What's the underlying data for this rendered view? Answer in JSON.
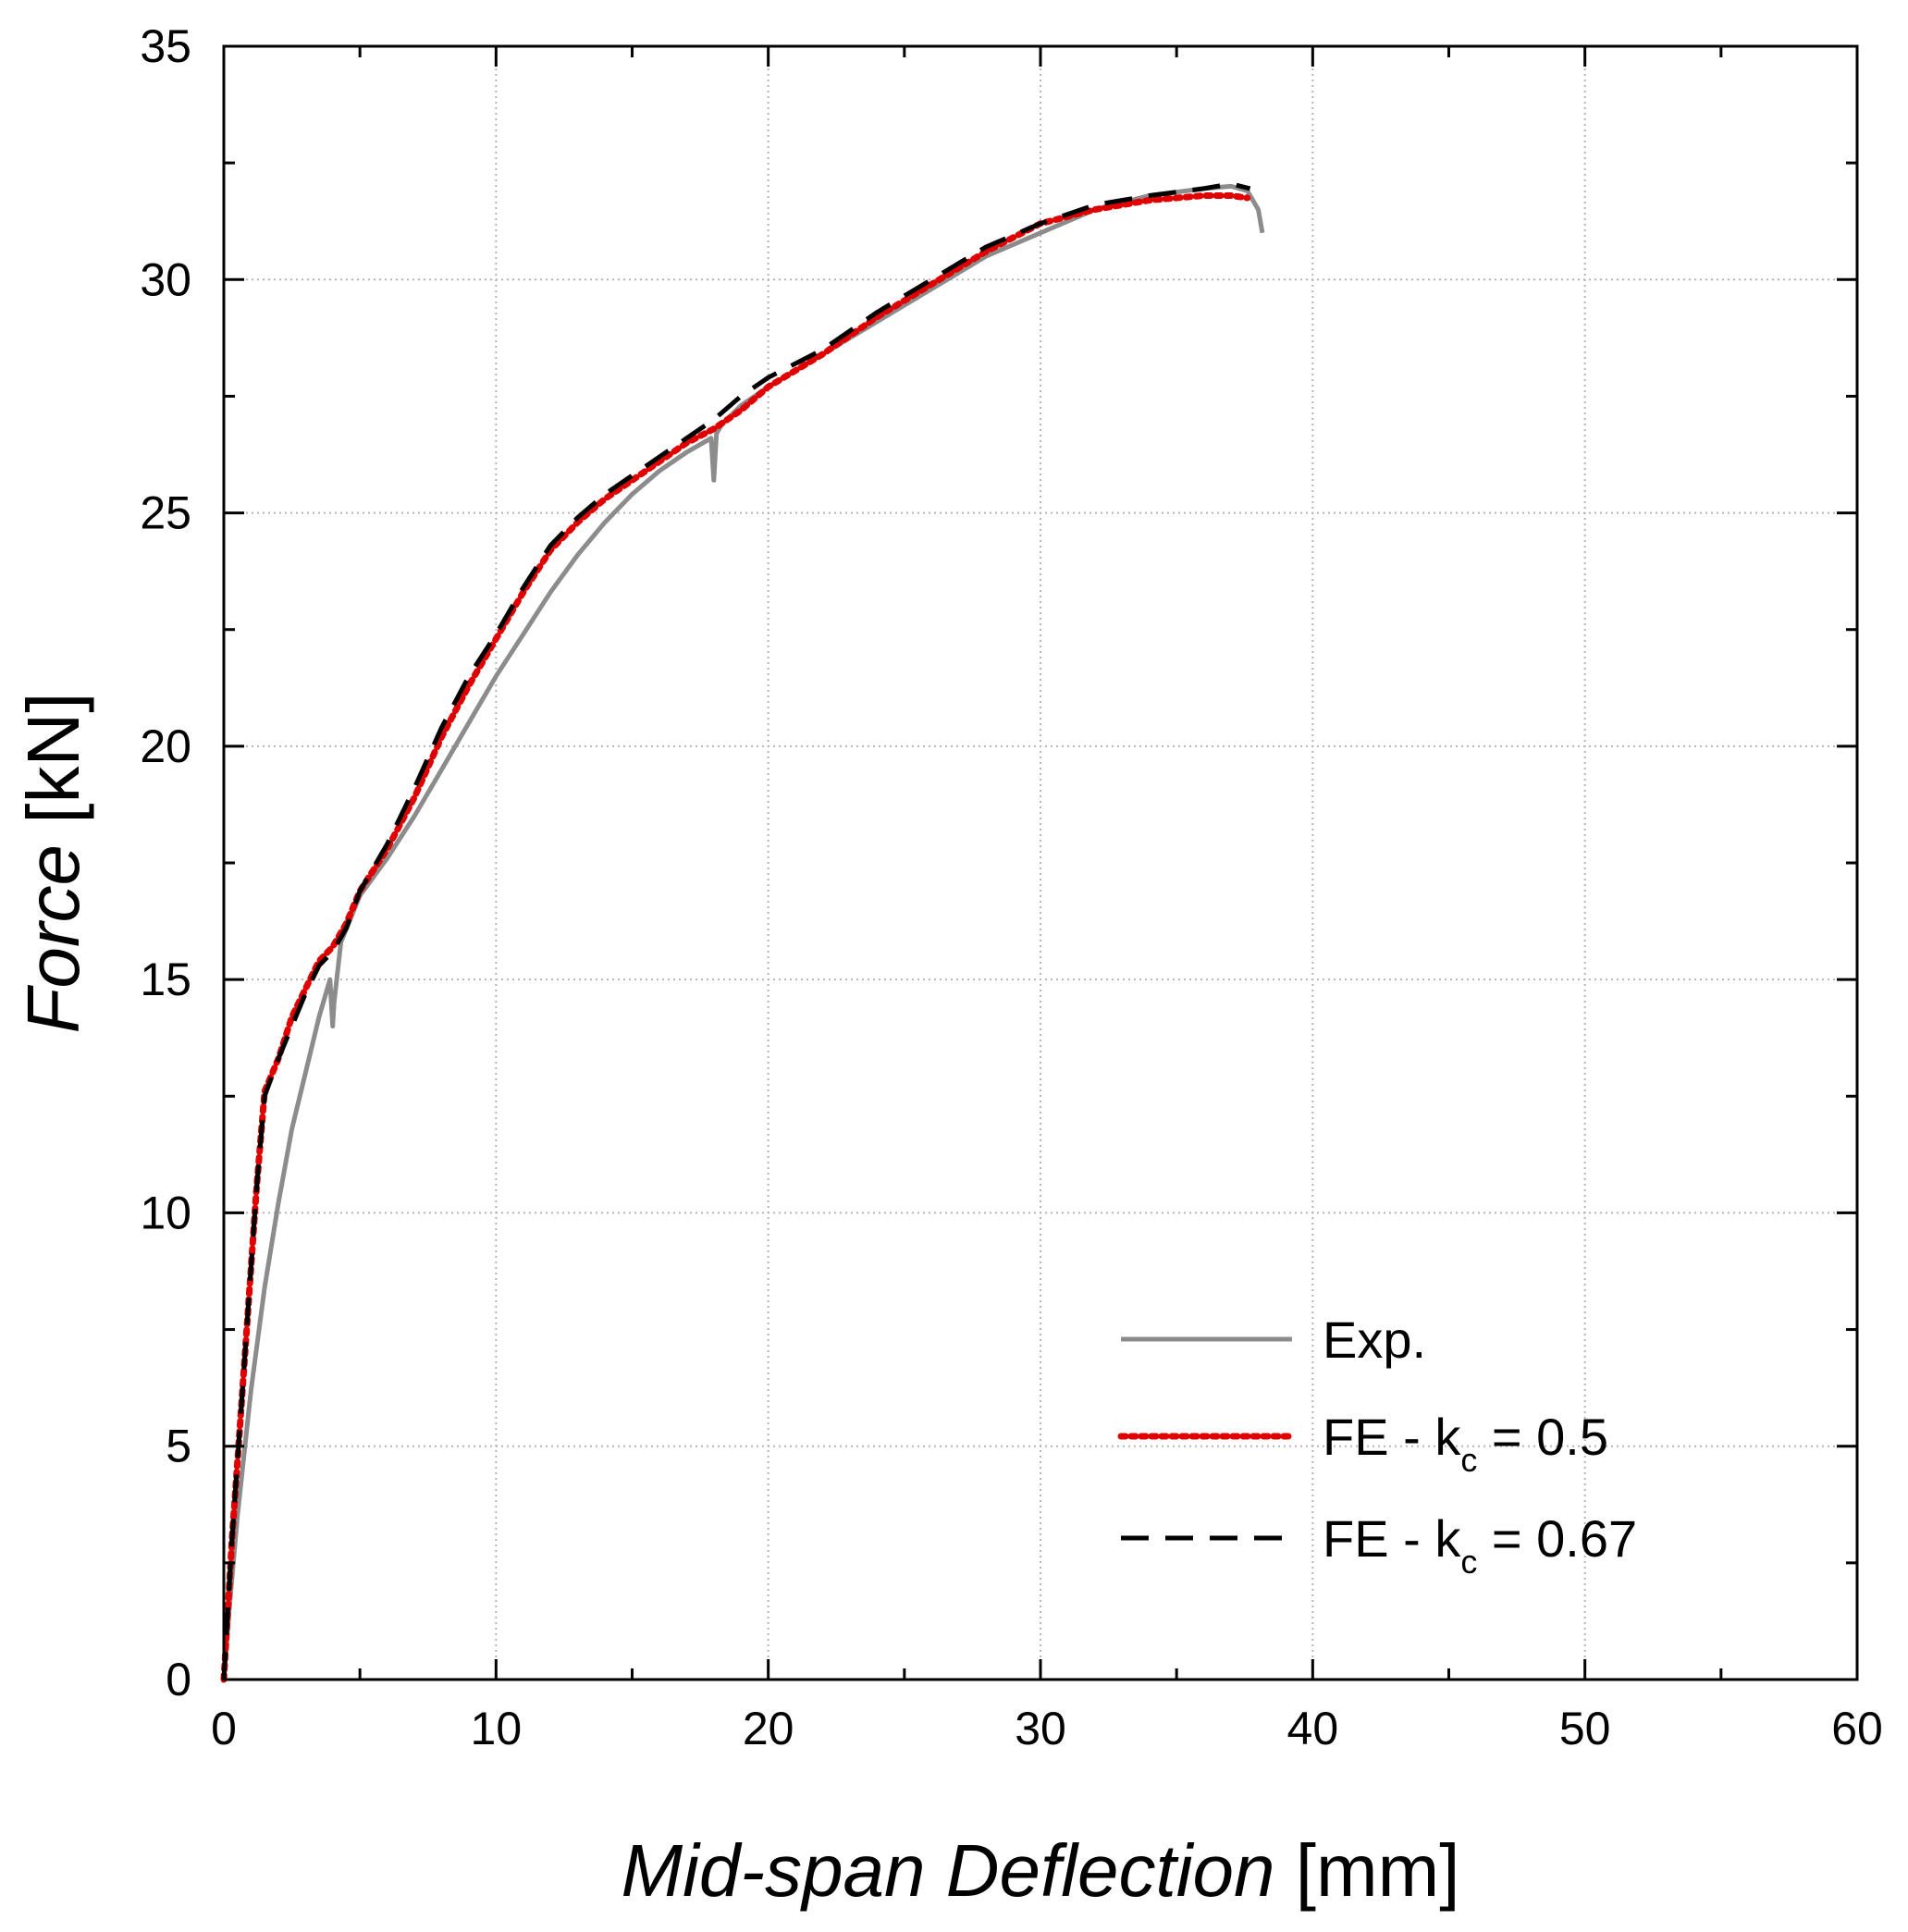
{
  "chart_data": {
    "type": "line",
    "title": "",
    "xlabel": {
      "italic": "Mid-span Deflection",
      "units": "[mm]"
    },
    "ylabel": {
      "italic": "Force",
      "units": "[kN]"
    },
    "xlim": [
      0,
      60
    ],
    "ylim": [
      0,
      35
    ],
    "xticks": [
      0,
      10,
      20,
      30,
      40,
      50,
      60
    ],
    "yticks": [
      0,
      5,
      10,
      15,
      20,
      25,
      30,
      35
    ],
    "x_tick_labels": [
      "0",
      "10",
      "20",
      "30",
      "40",
      "50",
      "60"
    ],
    "y_tick_labels": [
      "0",
      "5",
      "10",
      "15",
      "20",
      "25",
      "30",
      "35"
    ],
    "grid": true,
    "legend_position": "bottom-right",
    "series": [
      {
        "name": "Exp.",
        "legend": {
          "main": "Exp.",
          "sub": "",
          "suffix": ""
        },
        "color": "#8c8c8c",
        "style": "solid",
        "points": [
          [
            0,
            0
          ],
          [
            0.2,
            1.5
          ],
          [
            0.5,
            3.5
          ],
          [
            1,
            6.2
          ],
          [
            1.5,
            8.4
          ],
          [
            2,
            10.2
          ],
          [
            2.5,
            11.8
          ],
          [
            3,
            13
          ],
          [
            3.5,
            14.2
          ],
          [
            3.9,
            15
          ],
          [
            4,
            14
          ],
          [
            4.05,
            14.5
          ],
          [
            4.3,
            15.8
          ],
          [
            5,
            16.8
          ],
          [
            6,
            17.6
          ],
          [
            7,
            18.5
          ],
          [
            8,
            19.5
          ],
          [
            9,
            20.5
          ],
          [
            10,
            21.5
          ],
          [
            11,
            22.4
          ],
          [
            12,
            23.3
          ],
          [
            13,
            24.1
          ],
          [
            14,
            24.8
          ],
          [
            15,
            25.4
          ],
          [
            16,
            25.9
          ],
          [
            17,
            26.3
          ],
          [
            17.9,
            26.6
          ],
          [
            18,
            25.7
          ],
          [
            18.1,
            26.7
          ],
          [
            18.3,
            26.9
          ],
          [
            19,
            27.3
          ],
          [
            20,
            27.7
          ],
          [
            22,
            28.4
          ],
          [
            24,
            29.1
          ],
          [
            26,
            29.8
          ],
          [
            28,
            30.5
          ],
          [
            30,
            31
          ],
          [
            32,
            31.5
          ],
          [
            34,
            31.8
          ],
          [
            36,
            31.95
          ],
          [
            37,
            32
          ],
          [
            37.6,
            31.9
          ],
          [
            38,
            31.5
          ],
          [
            38.15,
            31
          ]
        ]
      },
      {
        "name": "FE - kc = 0.5",
        "legend": {
          "main": "FE - k",
          "sub": "c",
          "suffix": " = 0.5"
        },
        "color": "#e00000",
        "style": "dotted",
        "points": [
          [
            0,
            0
          ],
          [
            0.3,
            3
          ],
          [
            0.6,
            5.5
          ],
          [
            0.9,
            8
          ],
          [
            1.2,
            10.5
          ],
          [
            1.5,
            12.6
          ],
          [
            2,
            13.3
          ],
          [
            2.5,
            14.2
          ],
          [
            3,
            14.8
          ],
          [
            3.5,
            15.4
          ],
          [
            4,
            15.7
          ],
          [
            4.5,
            16.2
          ],
          [
            5,
            16.9
          ],
          [
            6,
            17.8
          ],
          [
            7,
            18.9
          ],
          [
            8,
            20.2
          ],
          [
            9,
            21.3
          ],
          [
            10,
            22.3
          ],
          [
            11,
            23.3
          ],
          [
            12,
            24.2
          ],
          [
            13,
            24.8
          ],
          [
            14,
            25.3
          ],
          [
            15,
            25.7
          ],
          [
            16,
            26.1
          ],
          [
            17,
            26.5
          ],
          [
            18,
            26.8
          ],
          [
            19,
            27.2
          ],
          [
            20,
            27.7
          ],
          [
            22,
            28.4
          ],
          [
            24,
            29.2
          ],
          [
            26,
            29.9
          ],
          [
            28,
            30.6
          ],
          [
            30,
            31.2
          ],
          [
            32,
            31.5
          ],
          [
            34,
            31.7
          ],
          [
            36,
            31.8
          ],
          [
            37,
            31.8
          ],
          [
            37.6,
            31.75
          ]
        ]
      },
      {
        "name": "FE - kc = 0.67",
        "legend": {
          "main": "FE - k",
          "sub": "c",
          "suffix": " = 0.67"
        },
        "color": "#000000",
        "style": "dashed",
        "points": [
          [
            0,
            0
          ],
          [
            0.3,
            3
          ],
          [
            0.6,
            5.5
          ],
          [
            0.9,
            8
          ],
          [
            1.2,
            10.5
          ],
          [
            1.5,
            12.5
          ],
          [
            2,
            13.3
          ],
          [
            2.5,
            14
          ],
          [
            3,
            14.7
          ],
          [
            3.5,
            15.3
          ],
          [
            4,
            15.6
          ],
          [
            4.5,
            16.1
          ],
          [
            5,
            16.9
          ],
          [
            6,
            17.9
          ],
          [
            7,
            19.1
          ],
          [
            8,
            20.4
          ],
          [
            9,
            21.5
          ],
          [
            10,
            22.4
          ],
          [
            11,
            23.4
          ],
          [
            12,
            24.3
          ],
          [
            13,
            24.9
          ],
          [
            14,
            25.4
          ],
          [
            15,
            25.8
          ],
          [
            16,
            26.2
          ],
          [
            17,
            26.6
          ],
          [
            18,
            27
          ],
          [
            19,
            27.5
          ],
          [
            20,
            27.9
          ],
          [
            22,
            28.5
          ],
          [
            24,
            29.3
          ],
          [
            26,
            30
          ],
          [
            28,
            30.7
          ],
          [
            30,
            31.2
          ],
          [
            32,
            31.6
          ],
          [
            34,
            31.8
          ],
          [
            36,
            31.95
          ],
          [
            37,
            32.05
          ],
          [
            37.7,
            31.95
          ]
        ]
      }
    ]
  }
}
